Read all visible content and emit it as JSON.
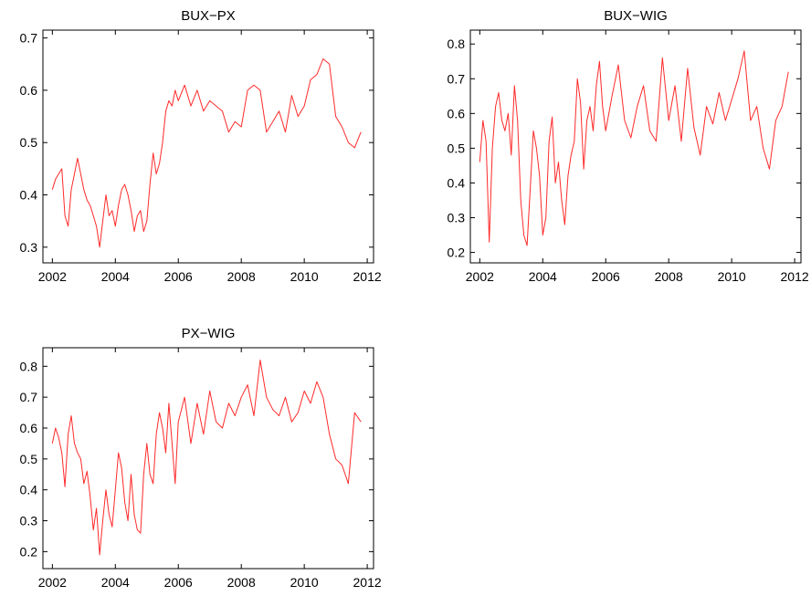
{
  "figure": {
    "colors": {
      "series": "#ff2a2a",
      "axes": "#000000",
      "background": "#ffffff"
    }
  },
  "chart_data": [
    {
      "type": "line",
      "title": "BUX−PX",
      "xlabel": "",
      "ylabel": "",
      "xlim": [
        2001.7,
        2012.2
      ],
      "ylim": [
        0.27,
        0.715
      ],
      "xticks": [
        2002,
        2004,
        2006,
        2008,
        2010,
        2012
      ],
      "xtick_labels": [
        "2002",
        "2004",
        "2006",
        "2008",
        "2010",
        "2012"
      ],
      "yticks": [
        0.3,
        0.4,
        0.5,
        0.6,
        0.7
      ],
      "ytick_labels": [
        "0.3",
        "0.4",
        "0.5",
        "0.6",
        "0.7"
      ],
      "grid": false,
      "series": [
        {
          "color": "#ff2a2a",
          "x": [
            2002.0,
            2002.1,
            2002.2,
            2002.3,
            2002.4,
            2002.5,
            2002.6,
            2002.7,
            2002.8,
            2002.9,
            2003.0,
            2003.1,
            2003.2,
            2003.3,
            2003.4,
            2003.5,
            2003.6,
            2003.7,
            2003.8,
            2003.9,
            2004.0,
            2004.1,
            2004.2,
            2004.3,
            2004.4,
            2004.5,
            2004.6,
            2004.7,
            2004.8,
            2004.9,
            2005.0,
            2005.1,
            2005.2,
            2005.3,
            2005.4,
            2005.5,
            2005.6,
            2005.7,
            2005.8,
            2005.9,
            2006.0,
            2006.2,
            2006.4,
            2006.6,
            2006.8,
            2007.0,
            2007.2,
            2007.4,
            2007.6,
            2007.8,
            2008.0,
            2008.2,
            2008.4,
            2008.6,
            2008.8,
            2009.0,
            2009.2,
            2009.4,
            2009.6,
            2009.8,
            2010.0,
            2010.2,
            2010.4,
            2010.6,
            2010.8,
            2011.0,
            2011.2,
            2011.4,
            2011.6,
            2011.8
          ],
          "y": [
            0.41,
            0.43,
            0.44,
            0.45,
            0.36,
            0.34,
            0.41,
            0.44,
            0.47,
            0.44,
            0.41,
            0.39,
            0.38,
            0.36,
            0.34,
            0.3,
            0.35,
            0.4,
            0.36,
            0.37,
            0.34,
            0.38,
            0.41,
            0.42,
            0.4,
            0.37,
            0.33,
            0.36,
            0.37,
            0.33,
            0.35,
            0.42,
            0.48,
            0.44,
            0.46,
            0.5,
            0.56,
            0.58,
            0.57,
            0.6,
            0.58,
            0.61,
            0.57,
            0.6,
            0.56,
            0.58,
            0.57,
            0.56,
            0.52,
            0.54,
            0.53,
            0.6,
            0.61,
            0.6,
            0.52,
            0.54,
            0.56,
            0.52,
            0.59,
            0.55,
            0.57,
            0.62,
            0.63,
            0.66,
            0.65,
            0.55,
            0.53,
            0.5,
            0.49,
            0.52
          ]
        }
      ]
    },
    {
      "type": "line",
      "title": "BUX−WIG",
      "xlabel": "",
      "ylabel": "",
      "xlim": [
        2001.7,
        2012.2
      ],
      "ylim": [
        0.17,
        0.84
      ],
      "xticks": [
        2002,
        2004,
        2006,
        2008,
        2010,
        2012
      ],
      "xtick_labels": [
        "2002",
        "2004",
        "2006",
        "2008",
        "2010",
        "2012"
      ],
      "yticks": [
        0.2,
        0.3,
        0.4,
        0.5,
        0.6,
        0.7,
        0.8
      ],
      "ytick_labels": [
        "0.2",
        "0.3",
        "0.4",
        "0.5",
        "0.6",
        "0.7",
        "0.8"
      ],
      "grid": false,
      "series": [
        {
          "color": "#ff2a2a",
          "x": [
            2002.0,
            2002.1,
            2002.2,
            2002.3,
            2002.4,
            2002.5,
            2002.6,
            2002.7,
            2002.8,
            2002.9,
            2003.0,
            2003.1,
            2003.2,
            2003.3,
            2003.4,
            2003.5,
            2003.6,
            2003.7,
            2003.8,
            2003.9,
            2004.0,
            2004.1,
            2004.2,
            2004.3,
            2004.4,
            2004.5,
            2004.6,
            2004.7,
            2004.8,
            2004.9,
            2005.0,
            2005.1,
            2005.2,
            2005.3,
            2005.4,
            2005.5,
            2005.6,
            2005.7,
            2005.8,
            2005.9,
            2006.0,
            2006.2,
            2006.4,
            2006.6,
            2006.8,
            2007.0,
            2007.2,
            2007.4,
            2007.6,
            2007.8,
            2008.0,
            2008.2,
            2008.4,
            2008.6,
            2008.8,
            2009.0,
            2009.2,
            2009.4,
            2009.6,
            2009.8,
            2010.0,
            2010.2,
            2010.4,
            2010.6,
            2010.8,
            2011.0,
            2011.2,
            2011.4,
            2011.6,
            2011.8
          ],
          "y": [
            0.46,
            0.58,
            0.52,
            0.23,
            0.5,
            0.62,
            0.66,
            0.58,
            0.55,
            0.6,
            0.48,
            0.68,
            0.58,
            0.35,
            0.25,
            0.22,
            0.38,
            0.55,
            0.5,
            0.42,
            0.25,
            0.3,
            0.52,
            0.59,
            0.4,
            0.46,
            0.35,
            0.28,
            0.42,
            0.48,
            0.52,
            0.7,
            0.63,
            0.44,
            0.58,
            0.62,
            0.55,
            0.68,
            0.75,
            0.62,
            0.55,
            0.65,
            0.74,
            0.58,
            0.53,
            0.62,
            0.68,
            0.55,
            0.52,
            0.76,
            0.58,
            0.68,
            0.52,
            0.73,
            0.56,
            0.48,
            0.62,
            0.57,
            0.66,
            0.58,
            0.64,
            0.7,
            0.78,
            0.58,
            0.62,
            0.5,
            0.44,
            0.58,
            0.62,
            0.72
          ]
        }
      ]
    },
    {
      "type": "line",
      "title": "PX−WIG",
      "xlabel": "",
      "ylabel": "",
      "xlim": [
        2001.7,
        2012.2
      ],
      "ylim": [
        0.145,
        0.86
      ],
      "xticks": [
        2002,
        2004,
        2006,
        2008,
        2010,
        2012
      ],
      "xtick_labels": [
        "2002",
        "2004",
        "2006",
        "2008",
        "2010",
        "2012"
      ],
      "yticks": [
        0.2,
        0.3,
        0.4,
        0.5,
        0.6,
        0.7,
        0.8
      ],
      "ytick_labels": [
        "0.2",
        "0.3",
        "0.4",
        "0.5",
        "0.6",
        "0.7",
        "0.8"
      ],
      "grid": false,
      "series": [
        {
          "color": "#ff2a2a",
          "x": [
            2002.0,
            2002.1,
            2002.2,
            2002.3,
            2002.4,
            2002.5,
            2002.6,
            2002.7,
            2002.8,
            2002.9,
            2003.0,
            2003.1,
            2003.2,
            2003.3,
            2003.4,
            2003.5,
            2003.6,
            2003.7,
            2003.8,
            2003.9,
            2004.0,
            2004.1,
            2004.2,
            2004.3,
            2004.4,
            2004.5,
            2004.6,
            2004.7,
            2004.8,
            2004.9,
            2005.0,
            2005.1,
            2005.2,
            2005.3,
            2005.4,
            2005.5,
            2005.6,
            2005.7,
            2005.8,
            2005.9,
            2006.0,
            2006.2,
            2006.4,
            2006.6,
            2006.8,
            2007.0,
            2007.2,
            2007.4,
            2007.6,
            2007.8,
            2008.0,
            2008.2,
            2008.4,
            2008.6,
            2008.8,
            2009.0,
            2009.2,
            2009.4,
            2009.6,
            2009.8,
            2010.0,
            2010.2,
            2010.4,
            2010.6,
            2010.8,
            2011.0,
            2011.2,
            2011.4,
            2011.6,
            2011.8
          ],
          "y": [
            0.55,
            0.6,
            0.57,
            0.52,
            0.41,
            0.58,
            0.64,
            0.55,
            0.52,
            0.5,
            0.42,
            0.46,
            0.38,
            0.27,
            0.34,
            0.19,
            0.3,
            0.4,
            0.32,
            0.28,
            0.4,
            0.52,
            0.47,
            0.36,
            0.3,
            0.45,
            0.32,
            0.27,
            0.26,
            0.45,
            0.55,
            0.45,
            0.42,
            0.58,
            0.65,
            0.6,
            0.52,
            0.68,
            0.55,
            0.42,
            0.62,
            0.7,
            0.55,
            0.68,
            0.58,
            0.72,
            0.62,
            0.6,
            0.68,
            0.64,
            0.7,
            0.74,
            0.64,
            0.82,
            0.7,
            0.66,
            0.64,
            0.7,
            0.62,
            0.65,
            0.72,
            0.68,
            0.75,
            0.7,
            0.58,
            0.5,
            0.48,
            0.42,
            0.65,
            0.62
          ]
        }
      ]
    }
  ]
}
